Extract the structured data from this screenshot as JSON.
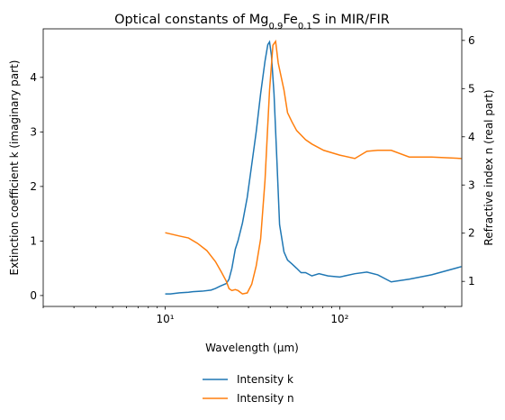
{
  "chart_data": {
    "type": "line",
    "title": [
      {
        "text": "Optical constants of Mg"
      },
      {
        "text": "0.9",
        "sub": true
      },
      {
        "text": "Fe"
      },
      {
        "text": "0.1",
        "sub": true
      },
      {
        "text": "S in MIR/FIR"
      }
    ],
    "xlabel": "Wavelength (μm)",
    "ylabel": "Extinction coefficient k (imaginary part)",
    "y2label": "Refractive index n (real part)",
    "xscale": "log",
    "xlim": [
      2,
      500
    ],
    "xticks": [
      {
        "value": 10,
        "label": "10¹"
      },
      {
        "value": 100,
        "label": "10²"
      }
    ],
    "xminorticks": [
      2,
      3,
      4,
      5,
      6,
      7,
      8,
      9,
      20,
      30,
      40,
      50,
      60,
      70,
      80,
      90,
      200,
      300,
      400
    ],
    "ylim": [
      -0.2,
      4.89
    ],
    "yticks": [
      0,
      1,
      2,
      3,
      4
    ],
    "y2lim": [
      0.48,
      6.24
    ],
    "y2ticks": [
      1,
      2,
      3,
      4,
      5,
      6
    ],
    "legend": "bottom",
    "series": [
      {
        "name": "Intensity k",
        "color": "#1f77b4",
        "axis": "y",
        "x": [
          10,
          10.7,
          12.1,
          13.6,
          14.4,
          16.3,
          18.3,
          19.4,
          20.6,
          22.4,
          23.2,
          24.1,
          25.2,
          26.1,
          27.7,
          29.5,
          31.3,
          33.2,
          35.2,
          37.3,
          38.7,
          39.6,
          40.6,
          42.0,
          43.6,
          45.2,
          47.9,
          50.2,
          53.2,
          56.6,
          60.0,
          63.7,
          69.2,
          76.0,
          85.6,
          100,
          122,
          143,
          165,
          197,
          250,
          336,
          497
        ],
        "values": [
          0.03,
          0.03,
          0.05,
          0.06,
          0.07,
          0.08,
          0.1,
          0.13,
          0.17,
          0.22,
          0.3,
          0.5,
          0.85,
          1.0,
          1.33,
          1.8,
          2.4,
          3.0,
          3.7,
          4.3,
          4.6,
          4.65,
          4.4,
          3.7,
          2.5,
          1.3,
          0.8,
          0.65,
          0.58,
          0.5,
          0.42,
          0.42,
          0.36,
          0.4,
          0.36,
          0.34,
          0.4,
          0.43,
          0.38,
          0.25,
          0.3,
          0.38,
          0.53
        ]
      },
      {
        "name": "Intensity n",
        "color": "#ff7f0e",
        "axis": "y2",
        "x": [
          10,
          12.1,
          13.6,
          15.3,
          17.3,
          19.4,
          21.0,
          22.4,
          23.2,
          24.1,
          25.2,
          26.1,
          27.7,
          29.5,
          31.3,
          33.2,
          35.2,
          37.3,
          39.6,
          41.4,
          42.9,
          44.4,
          47.9,
          50.2,
          53.2,
          56.6,
          63.7,
          69.2,
          80.8,
          100,
          122,
          143,
          165,
          197,
          250,
          336,
          497
        ],
        "values": [
          2.01,
          1.94,
          1.9,
          1.79,
          1.64,
          1.41,
          1.19,
          1.0,
          0.85,
          0.81,
          0.83,
          0.81,
          0.74,
          0.76,
          0.94,
          1.32,
          1.88,
          3.1,
          4.97,
          5.9,
          5.98,
          5.53,
          4.97,
          4.5,
          4.31,
          4.13,
          3.94,
          3.85,
          3.72,
          3.62,
          3.55,
          3.7,
          3.72,
          3.72,
          3.58,
          3.58,
          3.55
        ]
      }
    ]
  }
}
